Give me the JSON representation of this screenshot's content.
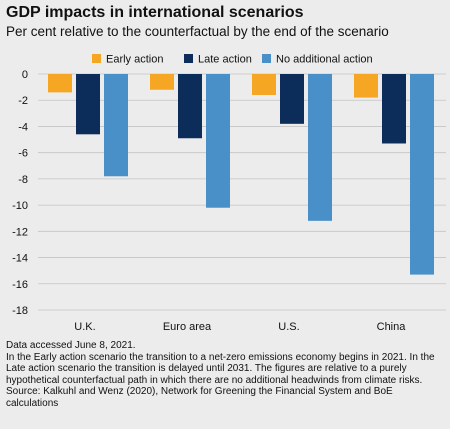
{
  "title": "GDP impacts in international scenarios",
  "subtitle": "Per cent relative to the counterfactual by the end of the scenario",
  "notes": {
    "accessed": "Data accessed June 8, 2021.",
    "description": "In the Early action scenario the transition to a net-zero emissions economy begins in 2021. In the Late action scenario the transition is delayed until 2031. The figures are relative to a purely hypothetical counterfactual path in which there are no additional headwinds from climate risks.",
    "source": "Source: Kalkuhl and Wenz (2020), Network for Greening the Financial System and BoE calculations"
  },
  "chart_data": {
    "type": "bar",
    "categories": [
      "U.K.",
      "Euro area",
      "U.S.",
      "China"
    ],
    "series": [
      {
        "name": "Early action",
        "color": "#f5a623",
        "values": [
          -1.4,
          -1.2,
          -1.6,
          -1.8
        ]
      },
      {
        "name": "Late action",
        "color": "#0c2c5a",
        "values": [
          -4.6,
          -4.9,
          -3.8,
          -5.3
        ]
      },
      {
        "name": "No additional action",
        "color": "#4a90c8",
        "values": [
          -7.8,
          -10.2,
          -11.2,
          -15.3
        ]
      }
    ],
    "ylim": [
      -18,
      0
    ],
    "yticks": [
      0,
      -2,
      -4,
      -6,
      -8,
      -10,
      -12,
      -14,
      -16,
      -18
    ],
    "grid": true,
    "legend_position": "top"
  }
}
